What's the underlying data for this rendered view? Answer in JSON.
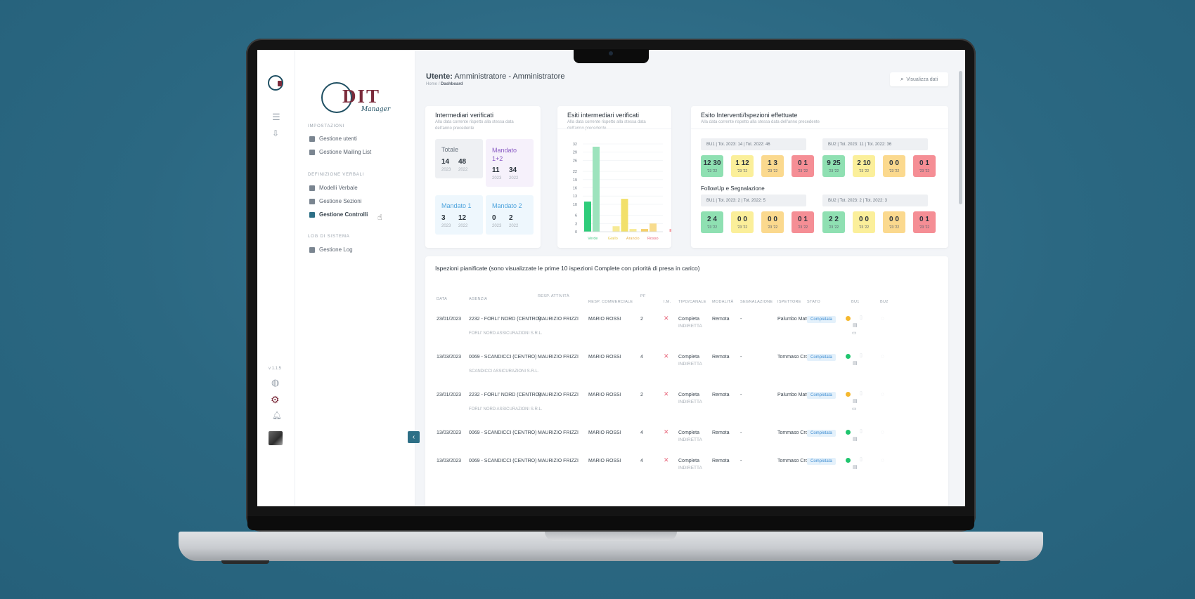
{
  "colors": {
    "accent": "#2d6f86",
    "brand": "#7b2b3b",
    "verde": "#4cc98a",
    "giallo": "#f2e06a",
    "arancio": "#f5cf6a",
    "rosso": "#f07d84"
  },
  "brand": {
    "logo_text": "DIT",
    "logo_sub": "Manager"
  },
  "rail": {
    "icons": [
      "logo-icon",
      "menu-icon",
      "download-icon",
      "globe-icon",
      "settings-icon",
      "bell-icon",
      "avatar"
    ],
    "version": "v 1.1.5"
  },
  "sidebar": {
    "sections": [
      {
        "title": "IMPOSTAZIONI",
        "items": [
          {
            "label": "Gestione utenti",
            "icon": "users-icon"
          },
          {
            "label": "Gestione Mailing List",
            "icon": "mail-icon"
          }
        ]
      },
      {
        "title": "DEFINIZIONE VERBALI",
        "items": [
          {
            "label": "Modelli Verbale",
            "icon": "clipboard-icon"
          },
          {
            "label": "Gestione Sezioni",
            "icon": "clipboard-icon"
          },
          {
            "label": "Gestione Controlli",
            "icon": "clipboard-icon",
            "active": true
          }
        ]
      },
      {
        "title": "LOG DI SISTEMA",
        "items": [
          {
            "label": "Gestione Log",
            "icon": "clipboard-icon"
          }
        ]
      }
    ]
  },
  "header": {
    "user_label": "Utente:",
    "user_name": "Amministratore - Amministratore",
    "breadcrumb_home": "Home",
    "breadcrumb_sep": "/",
    "breadcrumb_current": "Dashboard",
    "view_button": "Visualizza dati"
  },
  "card1": {
    "title": "Intermediari verificati",
    "subtitle": "Alla data corrente rispetto alla stessa data dell'anno precedente",
    "stats": [
      {
        "label": "Totale",
        "a": "14",
        "b": "48",
        "ya": "2023",
        "yb": "2022"
      },
      {
        "label": "Mandato 1+2",
        "a": "11",
        "b": "34",
        "ya": "2023",
        "yb": "2022"
      },
      {
        "label": "Mandato 1",
        "a": "3",
        "b": "12",
        "ya": "2023",
        "yb": "2022"
      },
      {
        "label": "Mandato 2",
        "a": "0",
        "b": "2",
        "ya": "2023",
        "yb": "2022"
      }
    ]
  },
  "card2": {
    "title": "Esiti intermediari verificati",
    "subtitle": "Alla data corrente rispetto alla stessa data dell'anno precedente"
  },
  "chart_data": {
    "type": "bar",
    "categories": [
      "Verde",
      "Giallo",
      "Arancio",
      "Rosso"
    ],
    "series": [
      {
        "values": [
          11,
          31,
          0,
          0
        ]
      },
      {
        "values": [
          0,
          2,
          12,
          1
        ]
      },
      {
        "values": [
          0,
          0,
          1,
          3
        ]
      },
      {
        "values": [
          0,
          0,
          0,
          1
        ]
      }
    ],
    "ylim": [
      0,
      32
    ],
    "yticks": [
      "32",
      "29",
      "26",
      "22",
      "19",
      "16",
      "13",
      "10",
      "6",
      "3",
      "0"
    ]
  },
  "card3": {
    "title": "Esito Interventi/Ispezioni effettuate",
    "subtitle": "Alla data corrente rispetto alla stessa data dell'anno precedente",
    "bu1": "BU1 | Tot. 2023: 14 | Tot. 2022: 46",
    "bu2": "BU2 | Tot. 2023: 11 | Tot. 2022: 36",
    "row1": [
      {
        "v": "12 30",
        "s": "'23 '22"
      },
      {
        "v": "1 12",
        "s": "'23 '22"
      },
      {
        "v": "1 3",
        "s": "'23 '22"
      },
      {
        "v": "0 1",
        "s": "'23 '22"
      },
      {
        "v": "9 25",
        "s": "'23 '22"
      },
      {
        "v": "2 10",
        "s": "'23 '22"
      },
      {
        "v": "0 0",
        "s": "'23 '22"
      },
      {
        "v": "0 1",
        "s": "'23 '22"
      }
    ],
    "followup": "FollowUp e Segnalazione",
    "bu1b": "BU1 | Tot. 2023: 2 | Tot. 2022: 5",
    "bu2b": "BU2 | Tot. 2023: 2 | Tot. 2022: 3",
    "row2": [
      {
        "v": "2 4",
        "s": "'23 '22"
      },
      {
        "v": "0 0",
        "s": "'23 '22"
      },
      {
        "v": "0 0",
        "s": "'23 '22"
      },
      {
        "v": "0 1",
        "s": "'23 '22"
      },
      {
        "v": "2 2",
        "s": "'23 '22"
      },
      {
        "v": "0 0",
        "s": "'23 '22"
      },
      {
        "v": "0 0",
        "s": "'23 '22"
      },
      {
        "v": "0 1",
        "s": "'23 '22"
      }
    ]
  },
  "table": {
    "title": "Ispezioni pianificate (sono visualizzate le prime 10 ispezioni Complete con priorità di presa in carico)",
    "headers": [
      "DATA",
      "AGENZIA",
      "RESP. ATTIVITÀ",
      "RESP. COMMERCIALE",
      "PF",
      "I.M.",
      "TIPO/CANALE",
      "MODALITÀ",
      "SEGNALAZIONE",
      "ISPETTORE",
      "STATO",
      "BU1",
      "BU2"
    ],
    "rows": [
      {
        "data": "23/01/2023",
        "agenzia": "2232 - FORLI' NORD (CENTRO)",
        "agenzia_sub": "FORLI' NORD ASSICURAZIONI S.R.L.",
        "resp_att": "MAURIZIO FRIZZI",
        "resp_comm": "MARIO ROSSI",
        "pf": "2",
        "tipo": "Completa",
        "canale": "INDIRETTA",
        "modalita": "Remota",
        "segnalazione": "-",
        "ispettore": "Palumbo Matteo",
        "stato": "Completata",
        "dot": "#f5b82e"
      },
      {
        "data": "13/03/2023",
        "agenzia": "0069 - SCANDICCI (CENTRO)",
        "agenzia_sub": "SCANDICCI ASSICURAZIONI S.R.L.",
        "resp_att": "MAURIZIO FRIZZI",
        "resp_comm": "MARIO ROSSI",
        "pf": "4",
        "tipo": "Completa",
        "canale": "INDIRETTA",
        "modalita": "Remota",
        "segnalazione": "-",
        "ispettore": "Tommaso Crociera",
        "stato": "Completata",
        "dot": "#1fc56e"
      },
      {
        "data": "23/01/2023",
        "agenzia": "2232 - FORLI' NORD (CENTRO)",
        "agenzia_sub": "FORLI' NORD ASSICURAZIONI S.R.L.",
        "resp_att": "MAURIZIO FRIZZI",
        "resp_comm": "MARIO ROSSI",
        "pf": "2",
        "tipo": "Completa",
        "canale": "INDIRETTA",
        "modalita": "Remota",
        "segnalazione": "-",
        "ispettore": "Palumbo Matteo",
        "stato": "Completata",
        "dot": "#f5b82e"
      },
      {
        "data": "13/03/2023",
        "agenzia": "0069 - SCANDICCI (CENTRO)",
        "agenzia_sub": "",
        "resp_att": "MAURIZIO FRIZZI",
        "resp_comm": "MARIO ROSSI",
        "pf": "4",
        "tipo": "Completa",
        "canale": "INDIRETTA",
        "modalita": "Remota",
        "segnalazione": "-",
        "ispettore": "Tommaso Crociera",
        "stato": "Completata",
        "dot": "#1fc56e"
      },
      {
        "data": "13/03/2023",
        "agenzia": "0069 - SCANDICCI (CENTRO)",
        "agenzia_sub": "",
        "resp_att": "MAURIZIO FRIZZI",
        "resp_comm": "MARIO ROSSI",
        "pf": "4",
        "tipo": "Completa",
        "canale": "INDIRETTA",
        "modalita": "Remota",
        "segnalazione": "-",
        "ispettore": "Tommaso Crociera",
        "stato": "Completata",
        "dot": "#1fc56e"
      }
    ]
  }
}
